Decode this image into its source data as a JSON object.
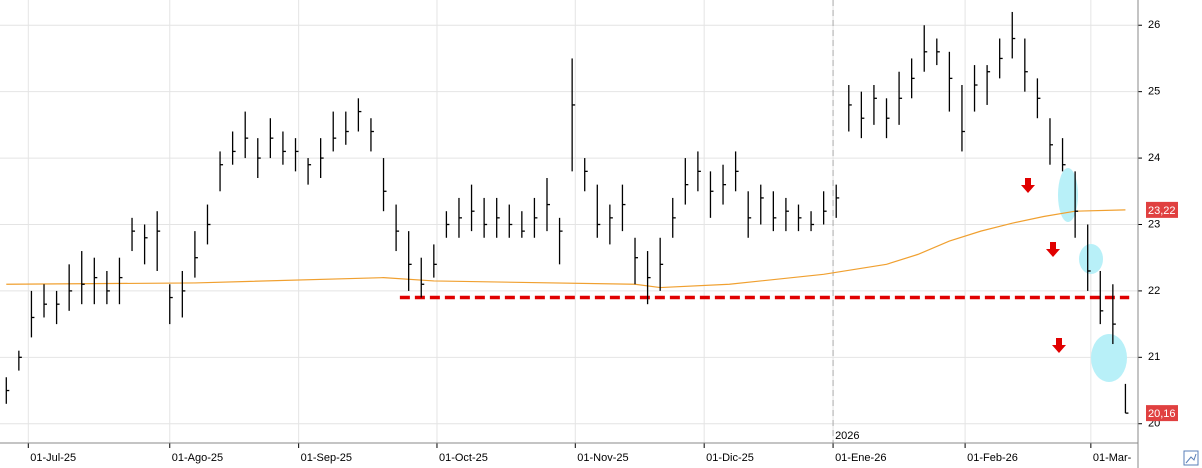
{
  "chart_data": {
    "type": "ohlc",
    "xlim": [
      -1,
      180
    ],
    "ylim": [
      19.71,
      26.38
    ],
    "yticks": [
      20,
      21,
      22,
      23,
      24,
      25,
      26
    ],
    "xticks": [
      {
        "value": 3.5,
        "label": "01-Jul-25"
      },
      {
        "value": 26,
        "label": "01-Ago-25"
      },
      {
        "value": 46.5,
        "label": "01-Sep-25"
      },
      {
        "value": 68.5,
        "label": "01-Oct-25"
      },
      {
        "value": 90.5,
        "label": "01-Nov-25"
      },
      {
        "value": 111,
        "label": "01-Dic-25"
      },
      {
        "value": 131.5,
        "label": "01-Ene-26"
      },
      {
        "value": 152.5,
        "label": "01-Feb-26"
      },
      {
        "value": 172.5,
        "label": "01-Mar-"
      }
    ],
    "grid": true,
    "year_marker": {
      "value": 131.5,
      "label": "2026"
    },
    "series": [
      {
        "color": "#000000",
        "x": [
          0,
          2,
          4,
          6,
          8,
          10,
          12,
          14,
          16,
          18,
          20,
          22,
          24,
          26,
          28,
          30,
          32,
          34,
          36,
          38,
          40,
          42,
          44,
          46,
          48,
          50,
          52,
          54,
          56,
          58,
          60,
          62,
          64,
          66,
          68,
          70,
          72,
          74,
          76,
          78,
          80,
          82,
          84,
          86,
          88,
          90,
          92,
          94,
          96,
          98,
          100,
          102,
          104,
          106,
          108,
          110,
          112,
          114,
          116,
          118,
          120,
          122,
          124,
          126,
          128,
          130,
          132,
          134,
          136,
          138,
          140,
          142,
          144,
          146,
          148,
          150,
          152,
          154,
          156,
          158,
          160,
          162,
          164,
          166,
          168,
          170,
          172,
          174,
          176,
          178
        ],
        "high": [
          20.7,
          21.1,
          22.0,
          22.1,
          22.0,
          22.4,
          22.6,
          22.5,
          22.3,
          22.5,
          23.1,
          23.0,
          23.2,
          22.1,
          22.3,
          22.9,
          23.3,
          24.1,
          24.4,
          24.7,
          24.3,
          24.6,
          24.4,
          24.3,
          24.0,
          24.3,
          24.7,
          24.7,
          24.9,
          24.6,
          24.0,
          23.3,
          22.9,
          22.5,
          22.7,
          23.2,
          23.4,
          23.6,
          23.4,
          23.4,
          23.3,
          23.2,
          23.4,
          23.7,
          23.1,
          25.5,
          24.0,
          23.6,
          23.3,
          23.6,
          22.8,
          22.6,
          22.8,
          23.4,
          24.0,
          24.1,
          23.8,
          23.9,
          24.1,
          23.5,
          23.6,
          23.5,
          23.4,
          23.3,
          23.2,
          23.5,
          23.6,
          25.1,
          25.0,
          25.1,
          24.9,
          25.3,
          25.5,
          26.0,
          25.8,
          25.6,
          25.1,
          25.4,
          25.4,
          25.8,
          26.2,
          25.8,
          25.2,
          24.6,
          24.3,
          23.8,
          23.0,
          22.3,
          22.1,
          20.6
        ],
        "low": [
          20.3,
          20.8,
          21.3,
          21.6,
          21.5,
          21.7,
          21.8,
          21.8,
          21.8,
          21.8,
          22.6,
          22.4,
          22.3,
          21.5,
          21.6,
          22.2,
          22.7,
          23.5,
          23.9,
          24.0,
          23.7,
          24.0,
          23.9,
          23.8,
          23.6,
          23.7,
          24.1,
          24.2,
          24.4,
          24.1,
          23.2,
          22.6,
          22.0,
          21.9,
          22.2,
          22.8,
          22.8,
          22.9,
          22.8,
          22.8,
          22.8,
          22.8,
          22.8,
          22.9,
          22.4,
          23.8,
          23.5,
          22.8,
          22.7,
          22.9,
          22.1,
          21.8,
          22.0,
          22.8,
          23.3,
          23.5,
          23.1,
          23.3,
          23.5,
          22.8,
          23.0,
          22.9,
          22.9,
          22.9,
          22.9,
          23.0,
          23.1,
          24.4,
          24.3,
          24.5,
          24.3,
          24.5,
          24.9,
          25.3,
          25.4,
          24.7,
          24.1,
          24.7,
          24.8,
          25.2,
          25.5,
          25.0,
          24.6,
          23.9,
          23.8,
          22.8,
          22.0,
          21.5,
          21.2,
          20.16
        ],
        "close": [
          20.5,
          21.0,
          21.6,
          21.8,
          21.8,
          22.0,
          22.1,
          22.2,
          22.0,
          22.2,
          22.9,
          22.8,
          22.9,
          21.9,
          22.0,
          22.5,
          23.0,
          23.9,
          24.1,
          24.3,
          24.0,
          24.3,
          24.1,
          24.1,
          23.9,
          24.0,
          24.3,
          24.4,
          24.7,
          24.4,
          23.5,
          22.9,
          22.4,
          22.1,
          22.4,
          23.0,
          23.1,
          23.2,
          23.0,
          23.1,
          23.0,
          22.9,
          23.1,
          23.3,
          22.9,
          24.8,
          23.8,
          23.0,
          23.1,
          23.3,
          22.5,
          22.2,
          22.4,
          23.1,
          23.6,
          23.8,
          23.5,
          23.6,
          23.8,
          23.1,
          23.4,
          23.1,
          23.2,
          23.1,
          23.0,
          23.2,
          23.4,
          24.8,
          24.6,
          24.9,
          24.6,
          24.9,
          25.2,
          25.6,
          25.6,
          25.2,
          24.4,
          25.1,
          25.3,
          25.5,
          25.8,
          25.3,
          24.9,
          24.2,
          23.9,
          23.2,
          22.3,
          21.7,
          21.5,
          20.16
        ]
      },
      {
        "color": "#f0a030",
        "x": [
          0,
          30,
          60,
          68,
          100,
          104,
          115,
          130,
          140,
          145,
          150,
          155,
          160,
          165,
          170,
          178
        ],
        "values": [
          22.1,
          22.12,
          22.2,
          22.15,
          22.1,
          22.05,
          22.1,
          22.25,
          22.4,
          22.55,
          22.75,
          22.9,
          23.02,
          23.12,
          23.2,
          23.22
        ]
      }
    ],
    "support": {
      "value": 21.9,
      "x": [
        62.6,
        178.6
      ],
      "color": "#e00000"
    },
    "price_labels": [
      {
        "value": 23.22,
        "label": "23,22",
        "color": "#e04040"
      },
      {
        "value": 20.16,
        "label": "20,16",
        "color": "#e04040"
      }
    ]
  }
}
